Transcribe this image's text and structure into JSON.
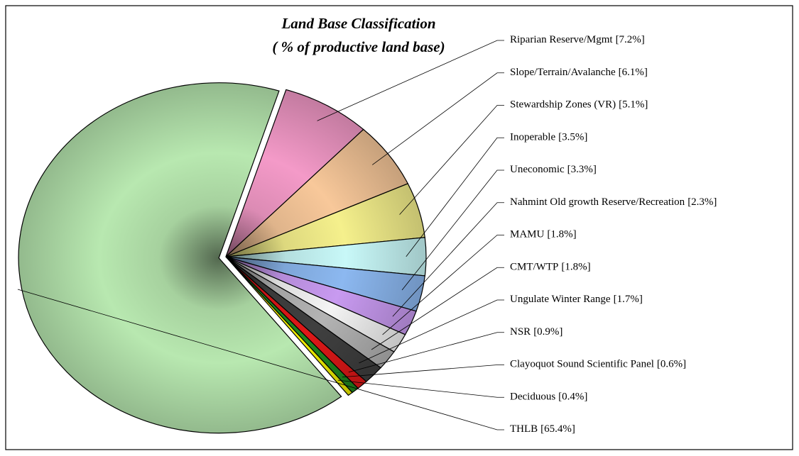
{
  "chart_data": {
    "type": "pie",
    "title": "Land Base Classification",
    "subtitle": "( % of productive land base)",
    "categories": [
      "Riparian Reserve/Mgmt",
      "Slope/Terrain/Avalanche",
      "Stewardship Zones (VR)",
      "Inoperable",
      "Uneconomic",
      "Nahmint Old growth Reserve/Recreation",
      "MAMU",
      "CMT/WTP",
      "Ungulate Winter Range",
      "NSR",
      "Clayoquot Sound Scientific Panel",
      "Deciduous",
      "THLB"
    ],
    "values": [
      7.2,
      6.1,
      5.1,
      3.5,
      3.3,
      2.3,
      1.8,
      1.8,
      1.7,
      0.9,
      0.6,
      0.4,
      65.4
    ],
    "value_labels": [
      "[7.2%]",
      "[6.1%]",
      "[5.1%]",
      "[3.5%]",
      "[3.3%]",
      "[2.3%]",
      "[1.8%]",
      "[1.8%]",
      "[1.7%]",
      "[0.9%]",
      "[0.6%]",
      "[0.4%]",
      "[65.4%]"
    ],
    "colors": [
      "#f49ac8",
      "#f8c89a",
      "#f5f08c",
      "#c8f8f8",
      "#8cb8f0",
      "#c89af0",
      "#f4f4f4",
      "#b4b4b4",
      "#404040",
      "#e01818",
      "#208820",
      "#f0f000",
      "#b8e8b0"
    ]
  }
}
